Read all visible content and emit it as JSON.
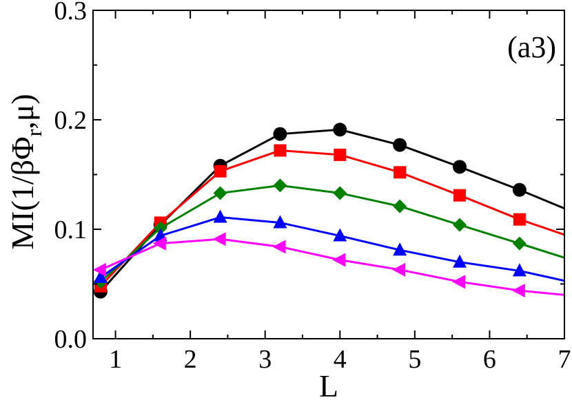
{
  "chart_data": {
    "type": "line",
    "panel_label": "(a3)",
    "xlabel": "L",
    "ylabel": {
      "main": "MI(1/βΦ",
      "subscript": "r",
      "tail": ",μ)"
    },
    "xlim": [
      0.7,
      7.0
    ],
    "ylim": [
      0.0,
      0.3
    ],
    "x_ticks": [
      1,
      2,
      3,
      4,
      5,
      6,
      7
    ],
    "x_tick_labels": [
      "1",
      "2",
      "3",
      "4",
      "5",
      "6",
      "7"
    ],
    "y_ticks": [
      0.0,
      0.1,
      0.2,
      0.3
    ],
    "y_tick_labels": [
      "0.0",
      "0.1",
      "0.2",
      "0.3"
    ],
    "grid": false,
    "legend": "none",
    "series": [
      {
        "color": "#000000",
        "marker": "circle",
        "x": [
          0.8,
          1.6,
          2.4,
          3.2,
          4.0,
          4.8,
          5.6,
          6.4,
          7.0
        ],
        "y": [
          0.043,
          0.104,
          0.158,
          0.187,
          0.191,
          0.177,
          0.157,
          0.136,
          0.119
        ],
        "markers_x": [
          0.8,
          1.6,
          2.4,
          3.2,
          4.0,
          4.8,
          5.6,
          6.4
        ]
      },
      {
        "color": "#ff0000",
        "marker": "square",
        "x": [
          0.8,
          1.6,
          2.4,
          3.2,
          4.0,
          4.8,
          5.6,
          6.4,
          7.0
        ],
        "y": [
          0.048,
          0.106,
          0.153,
          0.172,
          0.168,
          0.152,
          0.131,
          0.109,
          0.095
        ],
        "markers_x": [
          0.8,
          1.6,
          2.4,
          3.2,
          4.0,
          4.8,
          5.6,
          6.4
        ]
      },
      {
        "color": "#008000",
        "marker": "diamond",
        "x": [
          0.8,
          1.6,
          2.4,
          3.2,
          4.0,
          4.8,
          5.6,
          6.4,
          7.0
        ],
        "y": [
          0.052,
          0.101,
          0.133,
          0.14,
          0.133,
          0.121,
          0.104,
          0.087,
          0.074
        ],
        "markers_x": [
          0.8,
          1.6,
          2.4,
          3.2,
          4.0,
          4.8,
          5.6,
          6.4
        ]
      },
      {
        "color": "#0000ff",
        "marker": "triangle-up",
        "x": [
          0.8,
          1.6,
          2.4,
          3.2,
          4.0,
          4.8,
          5.6,
          6.4,
          7.0
        ],
        "y": [
          0.056,
          0.094,
          0.111,
          0.106,
          0.094,
          0.081,
          0.07,
          0.062,
          0.053
        ],
        "markers_x": [
          0.8,
          1.6,
          2.4,
          3.2,
          4.0,
          4.8,
          5.6,
          6.4
        ]
      },
      {
        "color": "#ff00ff",
        "marker": "triangle-left",
        "x": [
          0.8,
          1.6,
          2.4,
          3.2,
          4.0,
          4.8,
          5.6,
          6.4,
          7.0
        ],
        "y": [
          0.063,
          0.087,
          0.091,
          0.084,
          0.072,
          0.063,
          0.052,
          0.044,
          0.04
        ],
        "markers_x": [
          0.8,
          1.6,
          2.4,
          3.2,
          4.0,
          4.8,
          5.6,
          6.4
        ]
      }
    ]
  }
}
